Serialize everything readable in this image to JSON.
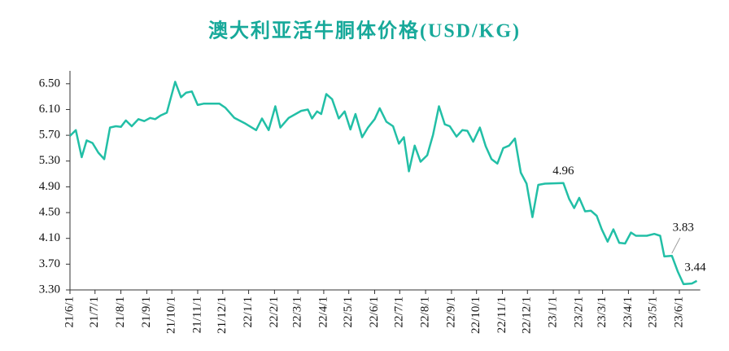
{
  "chart_data": {
    "type": "line",
    "title": "澳大利亚活牛胴体价格(USD/KG)",
    "x": [
      "2021-06-01",
      "2021-06-08",
      "2021-06-15",
      "2021-06-21",
      "2021-06-28",
      "2021-07-05",
      "2021-07-12",
      "2021-07-19",
      "2021-07-26",
      "2021-08-01",
      "2021-08-07",
      "2021-08-14",
      "2021-08-22",
      "2021-08-29",
      "2021-09-05",
      "2021-09-11",
      "2021-09-18",
      "2021-09-25",
      "2021-10-05",
      "2021-10-12",
      "2021-10-18",
      "2021-10-25",
      "2021-11-01",
      "2021-11-08",
      "2021-11-27",
      "2021-12-04",
      "2021-12-15",
      "2021-12-27",
      "2022-01-10",
      "2022-01-17",
      "2022-01-25",
      "2022-02-02",
      "2022-02-08",
      "2022-02-18",
      "2022-03-05",
      "2022-03-13",
      "2022-03-18",
      "2022-03-24",
      "2022-03-29",
      "2022-04-04",
      "2022-04-11",
      "2022-04-19",
      "2022-04-26",
      "2022-05-03",
      "2022-05-09",
      "2022-05-17",
      "2022-05-24",
      "2022-06-01",
      "2022-06-07",
      "2022-06-15",
      "2022-06-23",
      "2022-06-30",
      "2022-07-06",
      "2022-07-12",
      "2022-07-19",
      "2022-07-26",
      "2022-08-03",
      "2022-08-10",
      "2022-08-17",
      "2022-08-24",
      "2022-08-30",
      "2022-09-07",
      "2022-09-14",
      "2022-09-20",
      "2022-09-27",
      "2022-10-05",
      "2022-10-12",
      "2022-10-19",
      "2022-10-26",
      "2022-11-02",
      "2022-11-09",
      "2022-11-16",
      "2022-11-23",
      "2022-11-30",
      "2022-12-07",
      "2022-12-14",
      "2022-12-22",
      "2023-01-13",
      "2023-01-20",
      "2023-01-26",
      "2023-02-01",
      "2023-02-08",
      "2023-02-15",
      "2023-02-22",
      "2023-02-28",
      "2023-03-07",
      "2023-03-14",
      "2023-03-21",
      "2023-03-28",
      "2023-04-04",
      "2023-04-10",
      "2023-04-23",
      "2023-05-02",
      "2023-05-09",
      "2023-05-14",
      "2023-05-23",
      "2023-05-30",
      "2023-06-06",
      "2023-06-16",
      "2023-06-22"
    ],
    "series": [
      {
        "name": "澳大利亚活牛胴体价格",
        "color": "#22bfa6",
        "values": [
          5.69,
          5.78,
          5.36,
          5.62,
          5.58,
          5.43,
          5.33,
          5.82,
          5.84,
          5.83,
          5.93,
          5.84,
          5.95,
          5.92,
          5.97,
          5.95,
          6.01,
          6.05,
          6.53,
          6.29,
          6.36,
          6.38,
          6.17,
          6.19,
          6.19,
          6.13,
          5.97,
          5.89,
          5.78,
          5.96,
          5.78,
          6.15,
          5.82,
          5.97,
          6.08,
          6.1,
          5.96,
          6.07,
          6.03,
          6.34,
          6.26,
          5.96,
          6.07,
          5.79,
          6.03,
          5.67,
          5.82,
          5.95,
          6.12,
          5.91,
          5.84,
          5.57,
          5.67,
          5.14,
          5.54,
          5.29,
          5.39,
          5.71,
          6.15,
          5.87,
          5.84,
          5.68,
          5.78,
          5.77,
          5.6,
          5.82,
          5.53,
          5.33,
          5.26,
          5.5,
          5.54,
          5.65,
          5.12,
          4.95,
          4.43,
          4.93,
          4.95,
          4.96,
          4.71,
          4.57,
          4.73,
          4.52,
          4.53,
          4.45,
          4.24,
          4.05,
          4.24,
          4.03,
          4.02,
          4.19,
          4.14,
          4.14,
          4.17,
          4.14,
          3.82,
          3.83,
          3.59,
          3.39,
          3.4,
          3.44
        ]
      }
    ],
    "annotations": [
      {
        "x": "2023-01-13",
        "y": 4.96
      },
      {
        "x": "2023-05-23",
        "y": 3.83
      },
      {
        "x": "2023-06-22",
        "y": 3.44
      }
    ],
    "xlim": [
      "2021-06-01",
      "2023-06-26"
    ],
    "xticks": [
      {
        "value": "2021-06-01",
        "label": "21/6/1"
      },
      {
        "value": "2021-07-01",
        "label": "21/7/1"
      },
      {
        "value": "2021-08-01",
        "label": "21/8/1"
      },
      {
        "value": "2021-09-01",
        "label": "21/9/1"
      },
      {
        "value": "2021-10-01",
        "label": "21/10/1"
      },
      {
        "value": "2021-11-01",
        "label": "21/11/1"
      },
      {
        "value": "2021-12-01",
        "label": "21/12/1"
      },
      {
        "value": "2022-01-01",
        "label": "22/1/1"
      },
      {
        "value": "2022-02-01",
        "label": "22/2/1"
      },
      {
        "value": "2022-03-01",
        "label": "22/3/1"
      },
      {
        "value": "2022-04-01",
        "label": "22/4/1"
      },
      {
        "value": "2022-05-01",
        "label": "22/5/1"
      },
      {
        "value": "2022-06-01",
        "label": "22/6/1"
      },
      {
        "value": "2022-07-01",
        "label": "22/7/1"
      },
      {
        "value": "2022-08-01",
        "label": "22/8/1"
      },
      {
        "value": "2022-09-01",
        "label": "22/9/1"
      },
      {
        "value": "2022-10-01",
        "label": "22/10/1"
      },
      {
        "value": "2022-11-01",
        "label": "22/11/1"
      },
      {
        "value": "2022-12-01",
        "label": "22/12/1"
      },
      {
        "value": "2023-01-01",
        "label": "23/1/1"
      },
      {
        "value": "2023-02-01",
        "label": "23/2/1"
      },
      {
        "value": "2023-03-01",
        "label": "23/3/1"
      },
      {
        "value": "2023-04-01",
        "label": "23/4/1"
      },
      {
        "value": "2023-05-01",
        "label": "23/5/1"
      },
      {
        "value": "2023-06-01",
        "label": "23/6/1"
      }
    ],
    "ylim": [
      3.3,
      6.7
    ],
    "yticks": [
      {
        "value": 3.3,
        "label": "3.30"
      },
      {
        "value": 3.7,
        "label": "3.70"
      },
      {
        "value": 4.1,
        "label": "4.10"
      },
      {
        "value": 4.5,
        "label": "4.50"
      },
      {
        "value": 4.9,
        "label": "4.90"
      },
      {
        "value": 5.3,
        "label": "5.30"
      },
      {
        "value": 5.7,
        "label": "5.70"
      },
      {
        "value": 6.1,
        "label": "6.10"
      },
      {
        "value": 6.5,
        "label": "6.50"
      }
    ],
    "grid": false
  }
}
